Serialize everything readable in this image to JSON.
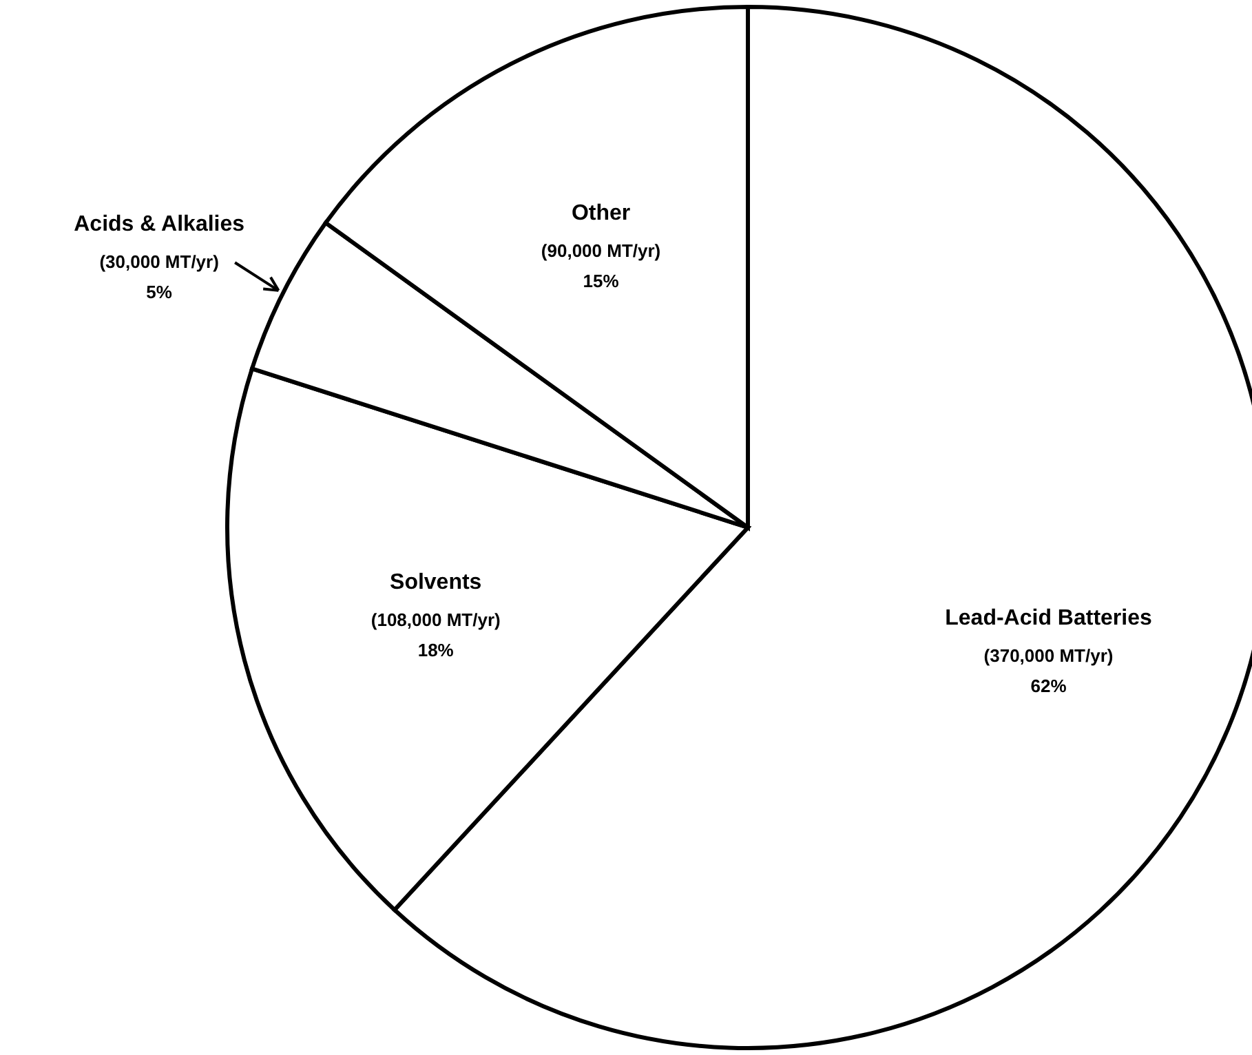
{
  "chart_data": {
    "type": "pie",
    "categories": [
      "Lead-Acid Batteries",
      "Solvents",
      "Acids & Alkalies",
      "Other"
    ],
    "values": [
      370000,
      108000,
      30000,
      90000
    ],
    "value_labels": [
      "(370,000 MT/yr)\n62%",
      "(108,000 MT/yr)\n18%",
      "(30,000 MT/yr)\n5%",
      "(90,000 MT/yr)\n15%"
    ],
    "colors": [
      "#ffffff",
      "#ffffff",
      "#ffffff",
      "#ffffff"
    ]
  }
}
